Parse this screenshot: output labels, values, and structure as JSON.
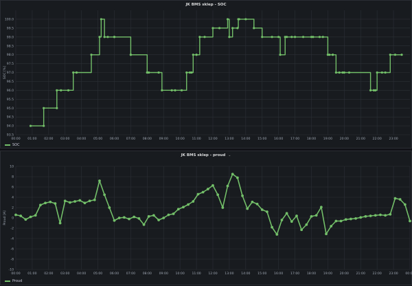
{
  "chart_data": [
    {
      "type": "line",
      "title": "JK BMS sklep - SOC",
      "ylabel": "SOC [%]",
      "ylim": [
        93.5,
        100.5
      ],
      "yticks": [
        "93.5",
        "94.0",
        "94.5",
        "95.0",
        "95.5",
        "96.0",
        "96.5",
        "97.0",
        "97.5",
        "98.0",
        "98.5",
        "99.0",
        "99.5",
        "100.0"
      ],
      "yticks_values": [
        93.5,
        94.0,
        94.5,
        95.0,
        95.5,
        96.0,
        96.5,
        97.0,
        97.5,
        98.0,
        98.5,
        99.0,
        99.5,
        100.0
      ],
      "xlim": [
        0,
        24
      ],
      "xticks": [
        "00:00",
        "01:00",
        "02:00",
        "03:00",
        "04:00",
        "05:00",
        "06:00",
        "07:00",
        "08:00",
        "09:00",
        "10:00",
        "11:00",
        "12:00",
        "13:00",
        "14:00",
        "15:00",
        "16:00",
        "17:00",
        "18:00",
        "19:00",
        "20:00",
        "21:00",
        "22:00",
        "23:00"
      ],
      "xticks_values": [
        0,
        1,
        2,
        3,
        4,
        5,
        6,
        7,
        8,
        9,
        10,
        11,
        12,
        13,
        14,
        15,
        16,
        17,
        18,
        19,
        20,
        21,
        22,
        23
      ],
      "legend_position": "bottom-left",
      "grid": true,
      "series": [
        {
          "name": "SOC",
          "color": "#73bf69",
          "x": [
            0.9,
            1.7,
            1.7,
            2.5,
            2.5,
            2.75,
            3.2,
            3.5,
            3.7,
            3.7,
            4.6,
            5.1,
            5.2,
            5.4,
            5.6,
            6.0,
            6.0,
            7.0,
            7.0,
            8.0,
            8.0,
            8.1,
            8.7,
            8.9,
            9.5,
            9.7,
            10.1,
            10.4,
            10.6,
            10.7,
            10.8,
            11.0,
            11.0,
            11.2,
            11.5,
            12.0,
            12.4,
            12.9,
            13.0,
            13.2,
            13.5,
            13.55,
            13.6,
            14.0,
            14.5,
            15.0,
            15.6,
            16.0,
            16.1,
            16.4,
            16.5,
            16.8,
            17.0,
            17.5,
            18.0,
            18.1,
            18.5,
            18.7,
            19.0,
            19.1,
            19.3,
            19.3,
            19.5,
            19.7,
            19.9,
            20.0,
            20.3,
            21.6,
            21.8,
            21.9,
            22.0,
            22.3,
            22.5,
            22.8,
            23.1,
            23.5
          ],
          "y": [
            94.0,
            94.0,
            95.0,
            95.0,
            96.0,
            96.0,
            96.0,
            97.0,
            97.0,
            97.0,
            98.0,
            99.0,
            100.0,
            99.0,
            99.0,
            99.0,
            99.0,
            98.0,
            98.0,
            97.0,
            97.0,
            97.0,
            97.0,
            96.0,
            96.0,
            96.0,
            96.0,
            97.0,
            97.0,
            97.0,
            98.0,
            98.0,
            98.0,
            99.0,
            99.0,
            99.5,
            99.5,
            100.0,
            99.0,
            99.5,
            99.5,
            100.0,
            100.0,
            100.0,
            99.5,
            99.0,
            99.0,
            99.0,
            98.0,
            99.0,
            99.0,
            99.0,
            99.0,
            99.0,
            99.0,
            99.0,
            99.0,
            99.0,
            98.0,
            98.0,
            98.0,
            98.0,
            97.0,
            97.0,
            97.0,
            97.0,
            97.0,
            96.0,
            96.0,
            96.0,
            97.0,
            97.0,
            97.0,
            98.0,
            98.0,
            98.0
          ]
        }
      ]
    },
    {
      "type": "line",
      "title": "JK BMS sklep - proud",
      "ylabel": "Proud [A]",
      "ylim": [
        -10,
        10
      ],
      "yticks": [
        "-10",
        "-8",
        "-6",
        "-4",
        "-2",
        "0",
        "2",
        "4",
        "6",
        "8",
        "10"
      ],
      "yticks_values": [
        -10,
        -8,
        -6,
        -4,
        -2,
        0,
        2,
        4,
        6,
        8,
        10
      ],
      "xlim": [
        0,
        24
      ],
      "xticks": [
        "00:00",
        "01:00",
        "02:00",
        "03:00",
        "04:00",
        "05:00",
        "06:00",
        "07:00",
        "08:00",
        "09:00",
        "10:00",
        "11:00",
        "12:00",
        "13:00",
        "14:00",
        "15:00",
        "16:00",
        "17:00",
        "18:00",
        "19:00",
        "20:00",
        "21:00",
        "22:00",
        "23:00",
        "00:00"
      ],
      "xticks_values": [
        0,
        1,
        2,
        3,
        4,
        5,
        6,
        7,
        8,
        9,
        10,
        11,
        12,
        13,
        14,
        15,
        16,
        17,
        18,
        19,
        20,
        21,
        22,
        23,
        24
      ],
      "legend_position": "bottom-left",
      "grid": true,
      "series": [
        {
          "name": "Proud",
          "color": "#73bf69",
          "x": [
            0.0,
            0.3,
            0.6,
            0.9,
            1.2,
            1.5,
            1.8,
            2.1,
            2.4,
            2.7,
            3.0,
            3.3,
            3.6,
            3.9,
            4.2,
            4.5,
            4.8,
            5.1,
            5.4,
            5.7,
            6.0,
            6.3,
            6.6,
            6.9,
            7.2,
            7.5,
            7.8,
            8.1,
            8.4,
            8.7,
            9.0,
            9.3,
            9.6,
            9.9,
            10.2,
            10.5,
            10.8,
            11.1,
            11.4,
            11.7,
            12.0,
            12.3,
            12.6,
            12.9,
            13.2,
            13.5,
            13.8,
            14.1,
            14.4,
            14.7,
            15.0,
            15.3,
            15.6,
            15.9,
            16.2,
            16.5,
            16.8,
            17.1,
            17.4,
            17.7,
            18.0,
            18.3,
            18.6,
            18.9,
            19.2,
            19.5,
            19.8,
            20.1,
            20.4,
            20.7,
            21.0,
            21.3,
            21.6,
            21.9,
            22.2,
            22.5,
            22.8,
            23.1,
            23.4,
            23.7,
            24.0
          ],
          "y": [
            0.6,
            0.4,
            -0.3,
            0.2,
            0.5,
            2.5,
            2.9,
            3.1,
            2.8,
            -1.0,
            3.3,
            3.0,
            3.2,
            3.4,
            2.9,
            3.3,
            3.5,
            7.2,
            4.5,
            2.0,
            -0.5,
            0.0,
            0.1,
            -0.2,
            0.2,
            -0.1,
            -1.3,
            0.3,
            0.5,
            -0.4,
            0.0,
            0.6,
            0.8,
            1.7,
            2.1,
            2.6,
            3.2,
            4.6,
            5.0,
            5.6,
            6.3,
            4.5,
            2.0,
            6.2,
            8.5,
            7.8,
            4.3,
            1.8,
            3.1,
            2.7,
            1.6,
            1.2,
            -1.8,
            -3.2,
            -0.4,
            0.9,
            -0.7,
            0.4,
            -2.3,
            -1.3,
            0.3,
            0.5,
            2.1,
            -3.1,
            -1.6,
            -0.6,
            -0.6,
            -0.3,
            -0.2,
            -0.1,
            0.1,
            0.3,
            0.4,
            0.5,
            0.6,
            0.5,
            0.7,
            3.8,
            3.6,
            2.6,
            -0.6
          ]
        }
      ]
    }
  ]
}
